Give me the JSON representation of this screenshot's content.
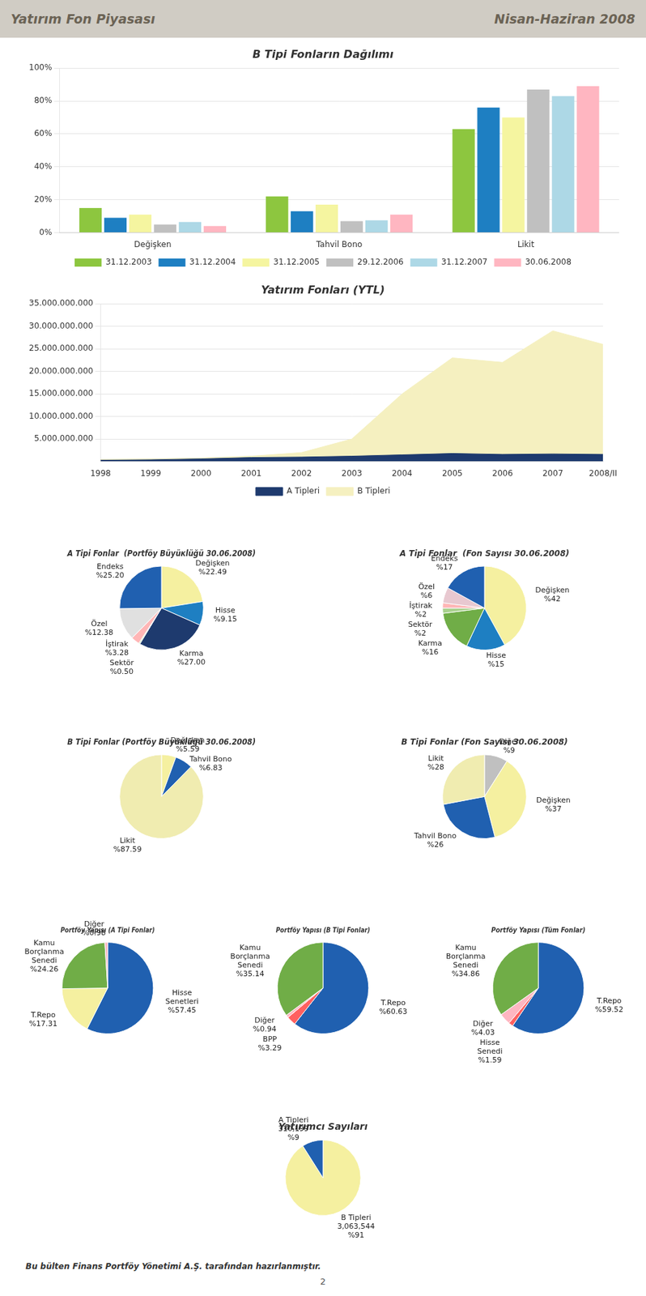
{
  "annotations": [
    "Yatırım Fon Piyasası",
    "Nisan-Haziran 2008",
    "Bu bülten Finans Portföy Yönetimi A.Ş. tarafından hazırlanmıştır.",
    "2"
  ],
  "chart_data": [
    {
      "type": "bar",
      "title": "B Tipi Fonların Dağılımı",
      "categories": [
        "Değişken",
        "Tahvil Bono",
        "Likit"
      ],
      "series": [
        {
          "name": "31.12.2003",
          "color": "#8dc63f",
          "values": [
            0.15,
            0.22,
            0.63
          ]
        },
        {
          "name": "31.12.2004",
          "color": "#1e7fc2",
          "values": [
            0.09,
            0.13,
            0.76
          ]
        },
        {
          "name": "31.12.2005",
          "color": "#f5f5a0",
          "values": [
            0.11,
            0.17,
            0.7
          ]
        },
        {
          "name": "29.12.2006",
          "color": "#c0c0c0",
          "values": [
            0.05,
            0.07,
            0.87
          ]
        },
        {
          "name": "31.12.2007",
          "color": "#add8e6",
          "values": [
            0.065,
            0.075,
            0.83
          ]
        },
        {
          "name": "30.06.2008",
          "color": "#ffb6c1",
          "values": [
            0.04,
            0.11,
            0.89
          ]
        }
      ],
      "ylim": [
        0,
        1.0
      ],
      "yticks": [
        {
          "value": 0,
          "label": "0%"
        },
        {
          "value": 0.2,
          "label": "20%"
        },
        {
          "value": 0.4,
          "label": "40%"
        },
        {
          "value": 0.6,
          "label": "60%"
        },
        {
          "value": 0.8,
          "label": "80%"
        },
        {
          "value": 1.0,
          "label": "100%"
        }
      ],
      "grid": true,
      "legend": "bottom"
    },
    {
      "type": "area",
      "title": "Yatırım Fonları (YTL)",
      "categories": [
        "1998",
        "1999",
        "2000",
        "2001",
        "2002",
        "2003",
        "2004",
        "2005",
        "2006",
        "2007",
        "2008/II"
      ],
      "series": [
        {
          "name": "A Tipleri",
          "color": "#1e3a6e",
          "values": [
            300000000,
            400000000,
            600000000,
            900000000,
            1000000000,
            1200000000,
            1500000000,
            1800000000,
            1600000000,
            1700000000,
            1600000000
          ]
        },
        {
          "name": "B Tipleri",
          "color": "#f5f0c0",
          "values": [
            500000000,
            600000000,
            800000000,
            1200000000,
            2000000000,
            5000000000,
            15000000000,
            23000000000,
            22000000000,
            29000000000,
            26000000000
          ]
        }
      ],
      "ylim": [
        0,
        35000000000
      ],
      "yticks": [
        {
          "value": 5000000000,
          "label": "5.000.000.000"
        },
        {
          "value": 10000000000,
          "label": "10.000.000.000"
        },
        {
          "value": 15000000000,
          "label": "15.000.000.000"
        },
        {
          "value": 20000000000,
          "label": "20.000.000.000"
        },
        {
          "value": 25000000000,
          "label": "25.000.000.000"
        },
        {
          "value": 30000000000,
          "label": "30.000.000.000"
        },
        {
          "value": 35000000000,
          "label": "35.000.000.000"
        }
      ],
      "grid": true,
      "legend": "bottom"
    },
    {
      "type": "pie",
      "title": "A Tipi Fonlar  (Portföy Büyüкlüğü 30.06.2008)",
      "categories": [
        "Değişken",
        "Hisse",
        "Karma",
        "Sektör",
        "İştirak",
        "Özel",
        "Endeks"
      ],
      "values": [
        22.49,
        9.15,
        27.0,
        0.5,
        3.28,
        12.38,
        25.2
      ],
      "value_labels": [
        "%22.49",
        "%9.15",
        "%27.00",
        "%0.50",
        "%3.28",
        "%12.38",
        "%25.20"
      ],
      "colors": [
        "#f5f0a0",
        "#1e7fc2",
        "#1e3a6e",
        "#c8e8c0",
        "#ffb6b6",
        "#e0e0e0",
        "#2060b0"
      ],
      "data_labels": true
    },
    {
      "type": "pie",
      "title": "A Tipi Fonlar  (Fon Sayısı 30.06.2008)",
      "categories": [
        "Değişken",
        "Hisse",
        "Karma",
        "Sektör",
        "İştirak",
        "Özel",
        "Endeks"
      ],
      "values": [
        42,
        15,
        16,
        2,
        2,
        6,
        17
      ],
      "value_labels": [
        "%42",
        "%15",
        "%16",
        "%2",
        "%2",
        "%6",
        "%17"
      ],
      "colors": [
        "#f5f0a0",
        "#1e7fc2",
        "#70ad47",
        "#a9d18e",
        "#ffb6b6",
        "#e8c8d0",
        "#2060b0"
      ],
      "data_labels": true
    },
    {
      "type": "pie",
      "title": "B Tipi Fonlar (Portföy Büyüкlüğü 30.06.2008)",
      "categories": [
        "Değişken",
        "Tahvil Bono",
        "Likit"
      ],
      "values": [
        5.59,
        6.83,
        87.59
      ],
      "value_labels": [
        "%5.59",
        "%6.83",
        "%87.59"
      ],
      "colors": [
        "#f5f0a0",
        "#2060b0",
        "#f0ecb0"
      ],
      "data_labels": true
    },
    {
      "type": "pie",
      "title": "B Tipi Fonlar (Fon Sayısı 30.06.2008)",
      "categories": [
        "Diğer",
        "Değişken",
        "Tahvil Bono",
        "Likit"
      ],
      "values": [
        9,
        37,
        26,
        28
      ],
      "value_labels": [
        "%9",
        "%37",
        "%26",
        "%28"
      ],
      "colors": [
        "#c0c0c0",
        "#f5f0a0",
        "#2060b0",
        "#f0ecb0"
      ],
      "data_labels": true
    },
    {
      "type": "pie",
      "title": "Portföy Yapısı (A Tipi Fonlar)",
      "categories": [
        "Hisse\nSenetleri",
        "T.Repo",
        "Kamu\nBorçlanma\nSenedi",
        "Diğer"
      ],
      "values": [
        57.45,
        17.31,
        24.26,
        0.98
      ],
      "value_labels": [
        "%57.45",
        "%17.31",
        "%24.26",
        "%0.98"
      ],
      "colors": [
        "#2060b0",
        "#f5f0a0",
        "#70ad47",
        "#ffb6c1"
      ],
      "data_labels": true
    },
    {
      "type": "pie",
      "title": "Portföy Yapısı (B Tipi Fonlar)",
      "categories": [
        "T.Repo",
        "BPP",
        "Diğer",
        "Kamu\nBorçlanma\nSenedi"
      ],
      "values": [
        60.63,
        3.29,
        0.94,
        35.14
      ],
      "value_labels": [
        "%60.63",
        "%3.29",
        "%0.94",
        "%35.14"
      ],
      "colors": [
        "#2060b0",
        "#ff6060",
        "#ffb6c1",
        "#70ad47"
      ],
      "data_labels": true
    },
    {
      "type": "pie",
      "title": "Portföy Yapısı (Tüm Fonlar)",
      "categories": [
        "T.Repo",
        "Hisse\nSenedi",
        "Diğer",
        "Kamu\nBorçlanma\nSenedi"
      ],
      "values": [
        59.52,
        1.59,
        4.03,
        34.86
      ],
      "value_labels": [
        "%59.52",
        "%1.59",
        "%4.03",
        "%34.86"
      ],
      "colors": [
        "#2060b0",
        "#ff6060",
        "#ffb6c1",
        "#70ad47"
      ],
      "data_labels": true
    },
    {
      "type": "pie",
      "title": "Yatırımcı Sayıları",
      "categories": [
        "B Tipleri",
        "A Tipleri"
      ],
      "values": [
        91,
        9
      ],
      "value_labels": [
        "%91",
        "%9"
      ],
      "counts": [
        {
          "value": 3063544,
          "label": "3,063,544"
        },
        {
          "value": 310199,
          "label": "310,199"
        }
      ],
      "colors": [
        "#f5f0a0",
        "#2060b0"
      ],
      "data_labels": true
    }
  ]
}
